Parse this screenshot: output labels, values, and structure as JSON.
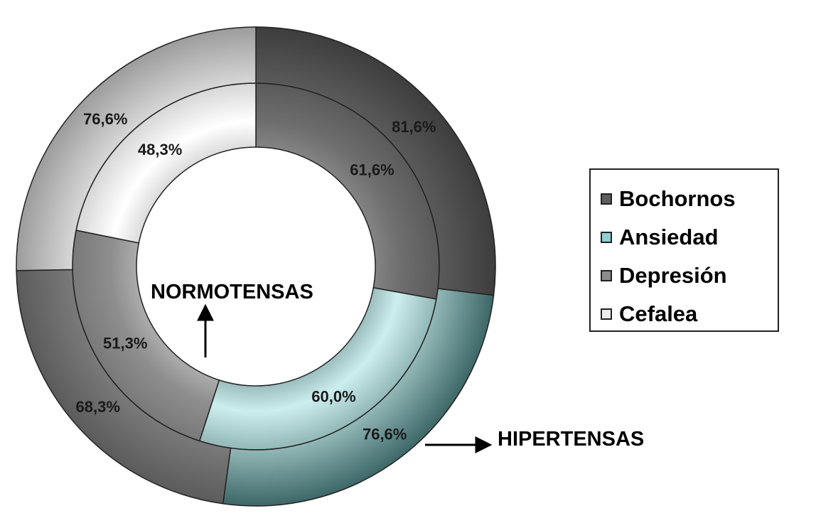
{
  "chart_data": {
    "type": "doughnut",
    "title": "",
    "categories": [
      "Bochornos",
      "Ansiedad",
      "Depresión",
      "Cefalea"
    ],
    "series": [
      {
        "name": "NORMOTENSAS",
        "ring": "inner",
        "values": [
          61.6,
          60.0,
          51.3,
          48.3
        ],
        "labels": [
          "61,6%",
          "60,0%",
          "51,3%",
          "48,3%"
        ]
      },
      {
        "name": "HIPERTENSAS",
        "ring": "outer",
        "values": [
          81.6,
          76.6,
          68.3,
          76.6
        ],
        "labels": [
          "81,6%",
          "76,6%",
          "68,3%",
          "76,6%"
        ]
      }
    ],
    "colors": {
      "Bochornos": "#5e5e5e",
      "Ansiedad": "#8fcfd2",
      "Depresión": "#8c8c8c",
      "Cefalea": "#ececec"
    },
    "legend": {
      "placement": "right",
      "entries": [
        "Bochornos",
        "Ansiedad",
        "Depresión",
        "Cefalea"
      ]
    },
    "annotations": [
      "NORMOTENSAS",
      "HIPERTENSAS"
    ]
  }
}
